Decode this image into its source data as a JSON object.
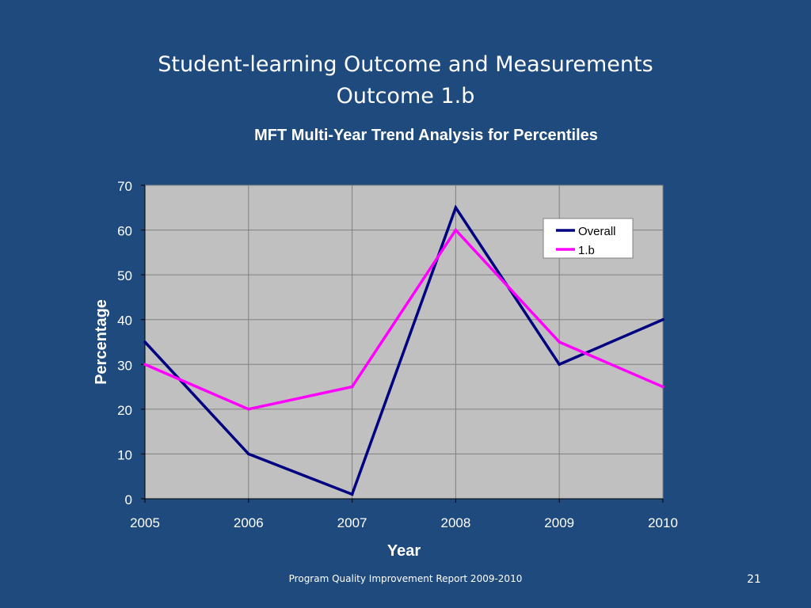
{
  "slide": {
    "title_line1": "Student-learning Outcome and Measurements",
    "title_line2": "Outcome 1.b",
    "footer": "Program Quality Improvement Report 2009-2010",
    "page_number": "21"
  },
  "colors": {
    "background": "#1f4a7d",
    "plot_area": "#c0c0c0",
    "overall": "#000080",
    "outcome_1b": "#ff00ff"
  },
  "chart_data": {
    "type": "line",
    "title": "MFT Multi-Year Trend Analysis for Percentiles",
    "xlabel": "Year",
    "ylabel": "Percentage",
    "x": [
      "2005",
      "2006",
      "2007",
      "2008",
      "2009",
      "2010"
    ],
    "ylim": [
      0,
      70
    ],
    "yticks": [
      "0",
      "10",
      "20",
      "30",
      "40",
      "50",
      "60",
      "70"
    ],
    "grid": true,
    "legend_position": "top-right",
    "series": [
      {
        "name": "Overall",
        "color": "#000080",
        "values": [
          35,
          10,
          1,
          65,
          30,
          40
        ]
      },
      {
        "name": "1.b",
        "color": "#ff00ff",
        "values": [
          30,
          20,
          25,
          60,
          35,
          25
        ]
      }
    ]
  }
}
